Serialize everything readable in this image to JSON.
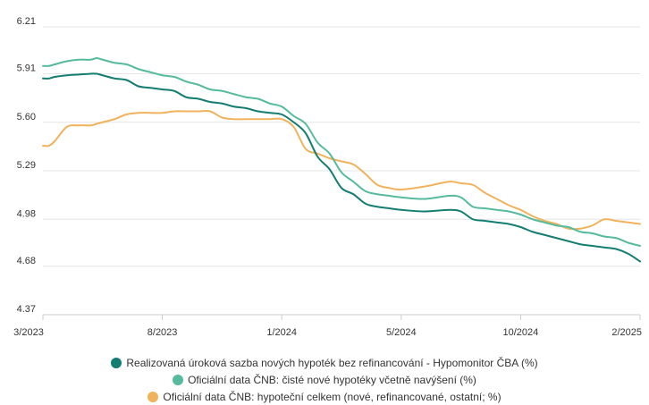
{
  "chart_data": {
    "type": "line",
    "xlabel": "",
    "ylabel": "",
    "ylim": [
      4.37,
      6.21
    ],
    "yticks": [
      "4.37",
      "4.68",
      "4.98",
      "5.29",
      "5.60",
      "5.91",
      "6.21"
    ],
    "xticks": [
      "3/2023",
      "8/2023",
      "1/2024",
      "5/2024",
      "10/2024",
      "2/2025"
    ],
    "grid": "horizontal",
    "legend_position": "bottom",
    "series": [
      {
        "name": "Realizovaná úroková sazba nových hypoték bez refinancování - Hypomonitor ČBA (%)",
        "color": "#137d71",
        "values": [
          [
            0,
            5.88
          ],
          [
            0.25,
            5.88
          ],
          [
            0.5,
            5.89
          ],
          [
            1,
            5.9
          ],
          [
            1.5,
            5.905
          ],
          [
            2,
            5.91
          ],
          [
            2.25,
            5.91
          ],
          [
            2.5,
            5.9
          ],
          [
            3,
            5.88
          ],
          [
            3.5,
            5.87
          ],
          [
            4,
            5.83
          ],
          [
            4.5,
            5.82
          ],
          [
            5,
            5.81
          ],
          [
            5.5,
            5.8
          ],
          [
            6,
            5.76
          ],
          [
            6.5,
            5.75
          ],
          [
            7,
            5.73
          ],
          [
            7.5,
            5.72
          ],
          [
            8,
            5.7
          ],
          [
            8.5,
            5.69
          ],
          [
            9,
            5.67
          ],
          [
            9.5,
            5.66
          ],
          [
            10,
            5.65
          ],
          [
            10.5,
            5.6
          ],
          [
            11,
            5.53
          ],
          [
            11.5,
            5.38
          ],
          [
            12,
            5.3
          ],
          [
            12.5,
            5.18
          ],
          [
            13,
            5.14
          ],
          [
            13.5,
            5.08
          ],
          [
            14,
            5.06
          ],
          [
            14.5,
            5.05
          ],
          [
            15,
            5.04
          ],
          [
            16,
            5.03
          ],
          [
            17,
            5.04
          ],
          [
            17.5,
            5.03
          ],
          [
            18,
            4.98
          ],
          [
            18.5,
            4.97
          ],
          [
            19,
            4.96
          ],
          [
            19.5,
            4.95
          ],
          [
            20,
            4.93
          ],
          [
            20.5,
            4.9
          ],
          [
            21,
            4.88
          ],
          [
            21.5,
            4.86
          ],
          [
            22,
            4.84
          ],
          [
            22.5,
            4.82
          ],
          [
            23,
            4.81
          ],
          [
            23.5,
            4.8
          ],
          [
            24,
            4.79
          ],
          [
            24.5,
            4.76
          ],
          [
            25,
            4.71
          ]
        ]
      },
      {
        "name": "Oficiální data ČNB: čisté nové hypotéky včetně navýšení (%)",
        "color": "#55bb9c",
        "values": [
          [
            0,
            5.96
          ],
          [
            0.25,
            5.96
          ],
          [
            0.5,
            5.97
          ],
          [
            1,
            5.99
          ],
          [
            1.5,
            6.0
          ],
          [
            2,
            6.0
          ],
          [
            2.25,
            6.01
          ],
          [
            2.5,
            6.0
          ],
          [
            3,
            5.98
          ],
          [
            3.5,
            5.97
          ],
          [
            4,
            5.94
          ],
          [
            4.5,
            5.92
          ],
          [
            5,
            5.9
          ],
          [
            5.5,
            5.89
          ],
          [
            6,
            5.86
          ],
          [
            6.5,
            5.84
          ],
          [
            7,
            5.81
          ],
          [
            7.5,
            5.8
          ],
          [
            8,
            5.78
          ],
          [
            8.5,
            5.76
          ],
          [
            9,
            5.75
          ],
          [
            9.5,
            5.72
          ],
          [
            10,
            5.7
          ],
          [
            10.5,
            5.64
          ],
          [
            11,
            5.59
          ],
          [
            11.5,
            5.47
          ],
          [
            12,
            5.4
          ],
          [
            12.5,
            5.28
          ],
          [
            13,
            5.22
          ],
          [
            13.5,
            5.16
          ],
          [
            14,
            5.14
          ],
          [
            14.5,
            5.13
          ],
          [
            15,
            5.12
          ],
          [
            16,
            5.11
          ],
          [
            17,
            5.13
          ],
          [
            17.5,
            5.12
          ],
          [
            18,
            5.06
          ],
          [
            18.5,
            5.05
          ],
          [
            19,
            5.04
          ],
          [
            19.5,
            5.03
          ],
          [
            20,
            5.01
          ],
          [
            20.5,
            4.98
          ],
          [
            21,
            4.96
          ],
          [
            21.5,
            4.94
          ],
          [
            22,
            4.93
          ],
          [
            22.5,
            4.9
          ],
          [
            23,
            4.89
          ],
          [
            23.5,
            4.87
          ],
          [
            24,
            4.86
          ],
          [
            24.5,
            4.83
          ],
          [
            25,
            4.81
          ]
        ]
      },
      {
        "name": "Oficiální data ČNB: hypoteční celkem (nové, refinancované, ostatní; %)",
        "color": "#f0b35b",
        "values": [
          [
            0,
            5.45
          ],
          [
            0.25,
            5.45
          ],
          [
            0.5,
            5.48
          ],
          [
            1,
            5.57
          ],
          [
            1.5,
            5.58
          ],
          [
            2,
            5.58
          ],
          [
            2.25,
            5.59
          ],
          [
            2.5,
            5.6
          ],
          [
            3,
            5.62
          ],
          [
            3.5,
            5.65
          ],
          [
            4,
            5.66
          ],
          [
            4.5,
            5.66
          ],
          [
            5,
            5.66
          ],
          [
            5.5,
            5.67
          ],
          [
            6,
            5.67
          ],
          [
            6.5,
            5.67
          ],
          [
            7,
            5.67
          ],
          [
            7.5,
            5.63
          ],
          [
            8,
            5.62
          ],
          [
            8.5,
            5.62
          ],
          [
            9,
            5.62
          ],
          [
            9.5,
            5.62
          ],
          [
            10,
            5.62
          ],
          [
            10.5,
            5.57
          ],
          [
            11,
            5.43
          ],
          [
            11.5,
            5.4
          ],
          [
            12,
            5.37
          ],
          [
            12.5,
            5.35
          ],
          [
            13,
            5.33
          ],
          [
            13.5,
            5.27
          ],
          [
            14,
            5.2
          ],
          [
            14.5,
            5.18
          ],
          [
            15,
            5.17
          ],
          [
            16,
            5.19
          ],
          [
            17,
            5.22
          ],
          [
            17.5,
            5.21
          ],
          [
            18,
            5.2
          ],
          [
            18.5,
            5.15
          ],
          [
            19,
            5.11
          ],
          [
            19.5,
            5.07
          ],
          [
            20,
            5.04
          ],
          [
            20.5,
            5.0
          ],
          [
            21,
            4.97
          ],
          [
            21.5,
            4.95
          ],
          [
            22,
            4.92
          ],
          [
            22.5,
            4.92
          ],
          [
            23,
            4.94
          ],
          [
            23.5,
            4.98
          ],
          [
            24,
            4.97
          ],
          [
            24.5,
            4.96
          ],
          [
            25,
            4.95
          ]
        ]
      }
    ]
  }
}
